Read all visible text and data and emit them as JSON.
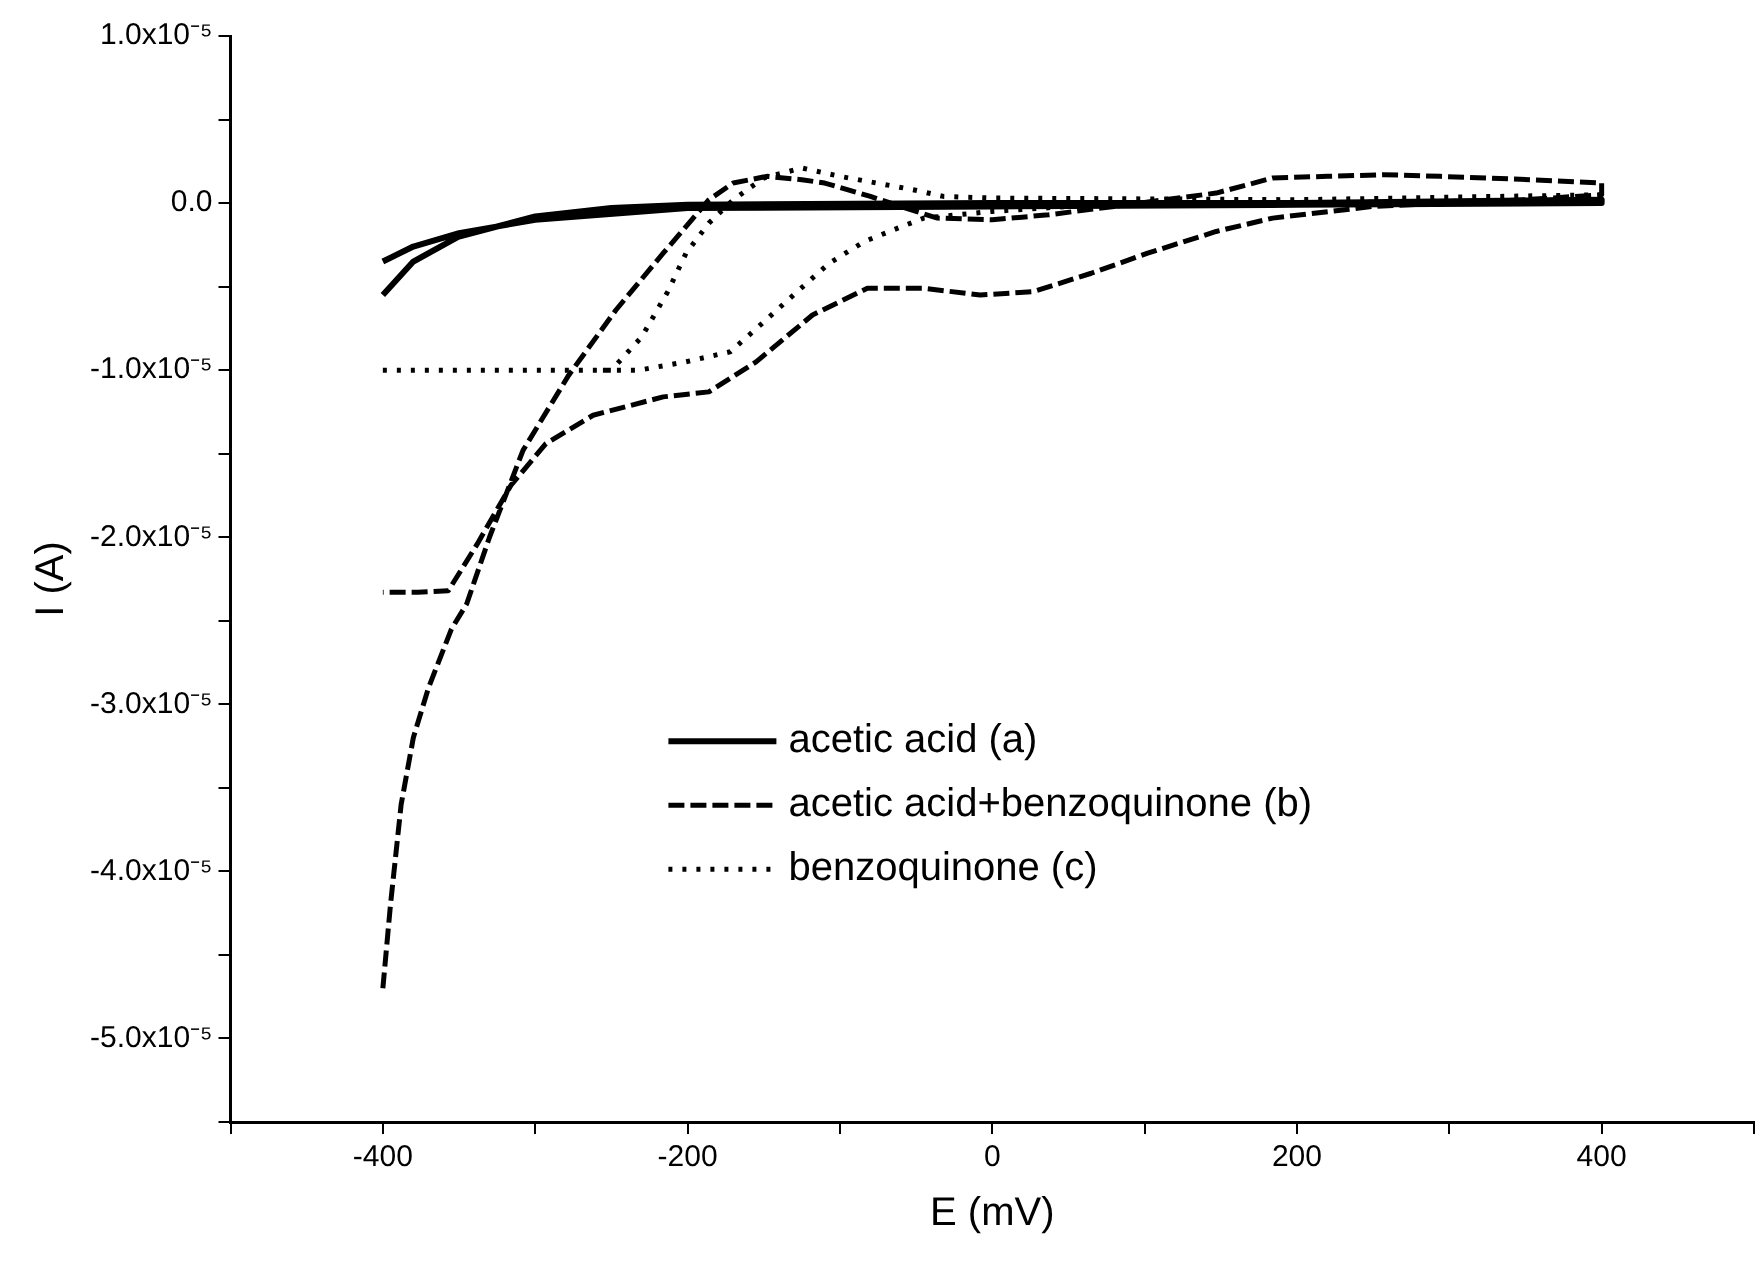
{
  "chart_data": {
    "type": "line",
    "xlabel": "E (mV)",
    "ylabel": "I (A)",
    "xlim": [
      -500,
      500
    ],
    "ylim": [
      -5.5e-05,
      1e-05
    ],
    "xticks": [
      {
        "value": -500,
        "label": null
      },
      -400,
      {
        "value": -300,
        "label": null
      },
      -200,
      {
        "value": -100,
        "label": null
      },
      0,
      {
        "value": 100,
        "label": null
      },
      200,
      {
        "value": 300,
        "label": null
      },
      400,
      {
        "value": 500,
        "label": null
      }
    ],
    "yticks": [
      {
        "value": -5.5e-05,
        "label": null
      },
      {
        "value": -5e-05,
        "label": "-5.0x10⁻⁵"
      },
      {
        "value": -4.5e-05,
        "label": null
      },
      {
        "value": -4e-05,
        "label": "-4.0x10⁻⁵"
      },
      {
        "value": -3.5e-05,
        "label": null
      },
      {
        "value": -3e-05,
        "label": "-3.0x10⁻⁵"
      },
      {
        "value": -2.5e-05,
        "label": null
      },
      {
        "value": -2e-05,
        "label": "-2.0x10⁻⁵"
      },
      {
        "value": -1.5e-05,
        "label": null
      },
      {
        "value": -1e-05,
        "label": "-1.0x10⁻⁵"
      },
      {
        "value": -5e-06,
        "label": null
      },
      {
        "value": 0,
        "label": "0.0"
      },
      {
        "value": 5e-06,
        "label": null
      },
      {
        "value": 1e-05,
        "label": "1.0x10⁻⁵"
      }
    ],
    "grid": false,
    "legend": "center",
    "series": [
      {
        "name": "acetic acid (a)",
        "color": "#000000",
        "line_style": "solid",
        "x": [
          -400,
          -380,
          -350,
          -300,
          -250,
          -200,
          0,
          200,
          400,
          400,
          200,
          0,
          -200,
          -300,
          -350,
          -380,
          -400
        ],
        "values": [
          -5.5e-06,
          -3.5e-06,
          -2e-06,
          -8e-07,
          -3e-07,
          -1e-07,
          0,
          0,
          2e-07,
          0,
          -1e-07,
          -2e-07,
          -3e-07,
          -1e-06,
          -1.8e-06,
          -2.6e-06,
          -3.5e-06
        ]
      },
      {
        "name": "acetic acid+benzoquinone (b)",
        "color": "#000000",
        "line_style": "dashed",
        "x": [
          -400,
          -395,
          -388,
          -380,
          -370,
          -355,
          -345,
          -330,
          -308,
          -278,
          -247,
          -216,
          -186,
          -170,
          -148,
          -125,
          -110,
          -80,
          -50,
          -36,
          0,
          37,
          80,
          147,
          184,
          220,
          257,
          294,
          353,
          400,
          400,
          350,
          250,
          184,
          147,
          102,
          65,
          27,
          -8,
          -45,
          -82,
          -118,
          -155,
          -186,
          -216,
          -262,
          -293,
          -316,
          -338,
          -357,
          -377,
          -400
        ],
        "values": [
          -4.7e-05,
          -4.2e-05,
          -3.6e-05,
          -3.2e-05,
          -2.9e-05,
          -2.55e-05,
          -2.4e-05,
          -2e-05,
          -1.48e-05,
          -1.03e-05,
          -6.4e-06,
          -3e-06,
          2e-07,
          1.2e-06,
          1.6e-06,
          1.4e-06,
          1.2e-06,
          4e-07,
          -5e-07,
          -9e-07,
          -1e-06,
          -7e-07,
          -2e-07,
          6e-07,
          1.5e-06,
          1.6e-06,
          1.7e-06,
          1.6e-06,
          1.4e-06,
          1.2e-06,
          5e-07,
          2e-07,
          -2e-07,
          -9e-07,
          -1.7e-06,
          -3e-06,
          -4.2e-06,
          -5.3e-06,
          -5.5e-06,
          -5.1e-06,
          -5.1e-06,
          -6.7e-06,
          -9.5e-06,
          -1.13e-05,
          -1.16e-05,
          -1.27e-05,
          -1.44e-05,
          -1.69e-05,
          -2.04e-05,
          -2.32e-05,
          -2.33e-05,
          -2.33e-05
        ]
      },
      {
        "name": "benzoquinone (c)",
        "color": "#000000",
        "line_style": "dotted",
        "x": [
          -400,
          -250,
          -230,
          -213,
          -201,
          -186,
          -170,
          -150,
          -125,
          -100,
          -76,
          -52,
          -32,
          0,
          200,
          400,
          400,
          200,
          50,
          0,
          -45,
          -62,
          -84,
          -107,
          -128,
          -151,
          -172,
          -201,
          -232,
          -260
        ],
        "values": [
          -1e-05,
          -1e-05,
          -8e-06,
          -5.3e-06,
          -3e-06,
          -1.2e-06,
          2e-07,
          1.5e-06,
          2.1e-06,
          1.6e-06,
          1.2e-06,
          8e-07,
          4e-07,
          3e-07,
          2e-07,
          5e-07,
          2e-07,
          0,
          -2e-07,
          -5e-07,
          -9e-07,
          -1.5e-06,
          -2.3e-06,
          -3.6e-06,
          -5.3e-06,
          -7.2e-06,
          -8.9e-06,
          -9.5e-06,
          -1e-05,
          -1e-05
        ]
      }
    ]
  }
}
